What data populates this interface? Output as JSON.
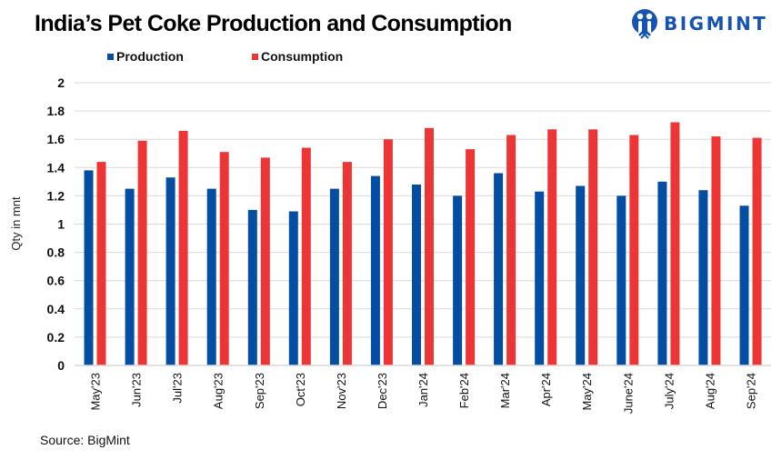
{
  "header": {
    "title": "India’s Pet Coke Production and Consumption",
    "logo_text": "BIGMINT",
    "logo_icon": "bigmint-people-icon"
  },
  "colors": {
    "production": "#034EA2",
    "consumption": "#EE3535",
    "brand": "#1553B4",
    "grid": "#D9D9D9"
  },
  "footer": {
    "source": "Source: BigMint"
  },
  "chart_data": {
    "type": "bar",
    "title": "India’s Pet Coke Production and Consumption",
    "xlabel": "",
    "ylabel": "Qty in mnt",
    "ylim": [
      0,
      2
    ],
    "yticks": [
      "0",
      "0.2",
      "0.4",
      "0.6",
      "0.8",
      "1",
      "1.2",
      "1.4",
      "1.6",
      "1.8",
      "2"
    ],
    "ytick_values": [
      0,
      0.2,
      0.4,
      0.6,
      0.8,
      1,
      1.2,
      1.4,
      1.6,
      1.8,
      2
    ],
    "grid": true,
    "legend_position": "top",
    "categories": [
      "May'23",
      "Jun'23",
      "Jul'23",
      "Aug'23",
      "Sep'23",
      "Oct'23",
      "Nov'23",
      "Dec'23",
      "Jan'24",
      "Feb'24",
      "Mar'24",
      "Apr'24",
      "May'24",
      "June'24",
      "July'24",
      "Aug'24",
      "Sep'24"
    ],
    "series": [
      {
        "name": "Production",
        "color": "#034EA2",
        "values": [
          1.38,
          1.25,
          1.33,
          1.25,
          1.1,
          1.09,
          1.25,
          1.34,
          1.28,
          1.2,
          1.36,
          1.23,
          1.27,
          1.2,
          1.3,
          1.24,
          1.13
        ]
      },
      {
        "name": "Consumption",
        "color": "#EE3535",
        "values": [
          1.44,
          1.59,
          1.66,
          1.51,
          1.47,
          1.54,
          1.44,
          1.6,
          1.68,
          1.53,
          1.63,
          1.67,
          1.67,
          1.63,
          1.72,
          1.62,
          1.61
        ]
      }
    ],
    "source": "Source: BigMint"
  }
}
